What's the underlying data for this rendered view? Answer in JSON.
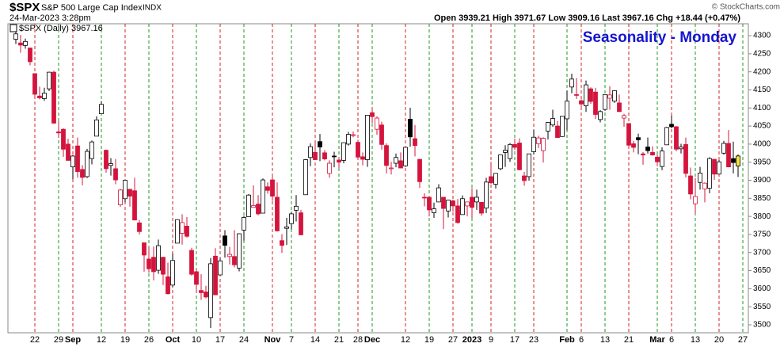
{
  "header": {
    "symbol": "$SPX",
    "name": "S&P 500 Large Cap Index",
    "exchange": "INDX",
    "date": "24-Mar-2023 3:28pm",
    "quote": "Open 3939.21  High 3971.67  Low 3909.16  Last 3967.16  Chg +18.44 (+0.47%)",
    "credit": "© StockCharts.com",
    "legend": "$SPX (Daily) 3967.16"
  },
  "chart_data": {
    "type": "candlestick",
    "annotation": "Seasonality - Monday",
    "categories": [
      null,
      null,
      null,
      null,
      "22",
      null,
      null,
      null,
      null,
      "29",
      null,
      null,
      "Sep",
      null,
      null,
      null,
      null,
      null,
      "12",
      null,
      null,
      null,
      null,
      "19",
      null,
      null,
      null,
      null,
      "26",
      null,
      null,
      null,
      null,
      "Oct",
      null,
      null,
      null,
      null,
      "10",
      null,
      null,
      null,
      null,
      "17",
      null,
      null,
      null,
      null,
      "24",
      null,
      null,
      null,
      null,
      null,
      "Nov",
      null,
      null,
      null,
      "7",
      null,
      null,
      null,
      null,
      "14",
      null,
      null,
      null,
      null,
      "21",
      null,
      null,
      null,
      "28",
      null,
      null,
      "Dec",
      null,
      null,
      null,
      null,
      null,
      null,
      "12",
      null,
      null,
      null,
      null,
      "19",
      null,
      null,
      null,
      null,
      "27",
      null,
      null,
      null,
      "2023",
      null,
      null,
      null,
      "9",
      null,
      null,
      null,
      null,
      "17",
      null,
      null,
      null,
      "23",
      null,
      null,
      null,
      null,
      null,
      null,
      "Feb",
      null,
      null,
      "6",
      null,
      null,
      null,
      null,
      "13",
      null,
      null,
      null,
      null,
      "21",
      null,
      null,
      null,
      null,
      null,
      "Mar",
      null,
      null,
      "6",
      null,
      null,
      null,
      null,
      "13",
      null,
      null,
      null,
      null,
      "20",
      null,
      null,
      null,
      null,
      "27"
    ],
    "open": [
      4290,
      4280,
      4273,
      4266,
      4195,
      4133,
      4126,
      4153,
      4199,
      4034,
      4041,
      4000,
      3937,
      3995,
      3930,
      3910,
      3960,
      4022,
      4084,
      3983,
      3941,
      3932,
      3832,
      3849,
      3875,
      3871,
      3782,
      3727,
      3682,
      3687,
      3651,
      3687,
      3633,
      3610,
      3726,
      3753,
      3773,
      3706,
      3647,
      3595,
      3591,
      3520,
      3690,
      3638,
      3746,
      3689,
      3689,
      3657,
      3762,
      3799,
      3825,
      3834,
      3809,
      3882,
      3901,
      3853,
      3733,
      3767,
      3780,
      3817,
      3810,
      3860,
      3963,
      3977,
      4007,
      3976,
      3919,
      3967,
      3956,
      3955,
      4000,
      4024,
      4005,
      3965,
      3957,
      4087,
      4041,
      4053,
      3996,
      3934,
      3947,
      3954,
      3940,
      4069,
      4015,
      3958,
      3853,
      3853,
      3810,
      3840,
      3853,
      3815,
      3843,
      3829,
      3805,
      3829,
      3853,
      3840,
      3839,
      3823,
      3910,
      3889,
      3932,
      3977,
      3960,
      3999,
      4003,
      3912,
      3910,
      3979,
      4001,
      3982,
      4036,
      4053,
      4050,
      4021,
      4070,
      4158,
      4137,
      4120,
      4106,
      4153,
      4144,
      4068,
      4096,
      4127,
      4119,
      4114,
      4072,
      4057,
      4001,
      4018,
      3973,
      3992,
      3977,
      3964,
      3938,
      3998,
      4055,
      4048,
      3987,
      3999,
      3912,
      3835,
      3894,
      3876,
      3878,
      3958,
      3917,
      3975,
      4002,
      3960,
      3939.21,
      null
    ],
    "high": [
      4325,
      4302,
      4292,
      4266,
      4195,
      4159,
      4156,
      4200,
      4203,
      4063,
      4044,
      4015,
      3970,
      4018,
      3942,
      3987,
      4010,
      4077,
      4119,
      3985,
      3961,
      3959,
      3876,
      3900,
      3876,
      3907,
      3790,
      3727,
      3715,
      3717,
      3736,
      3687,
      3672,
      3698,
      3792,
      3806,
      3798,
      3713,
      3653,
      3640,
      3608,
      3685,
      3712,
      3684,
      3762,
      3716,
      3762,
      3753,
      3801,
      3862,
      3886,
      3859,
      3905,
      3894,
      3911,
      3894,
      3751,
      3796,
      3813,
      3859,
      3818,
      3959,
      4002,
      4009,
      4028,
      3984,
      3955,
      3979,
      3963,
      4004,
      4034,
      4035,
      4012,
      3977,
      4080,
      4101,
      4077,
      4062,
      4002,
      3951,
      3974,
      3977,
      3990,
      4101,
      4053,
      3958,
      3864,
      3855,
      3838,
      3889,
      3853,
      3846,
      3846,
      3848,
      3858,
      3840,
      3878,
      3874,
      3839,
      3907,
      3951,
      3919,
      3970,
      3997,
      4003,
      4015,
      4016,
      3923,
      3973,
      4039,
      4023,
      4019,
      4061,
      4095,
      4064,
      4077,
      4148,
      4195,
      4183,
      4124,
      4176,
      4157,
      4156,
      4094,
      4138,
      4160,
      4149,
      4137,
      4084,
      4057,
      4009,
      4029,
      3978,
      4018,
      3994,
      3971,
      3991,
      4048,
      4079,
      4050,
      4001,
      4018,
      3935,
      3906,
      3937,
      3894,
      3964,
      3959,
      3956,
      4009,
      4039,
      4007,
      3971.67,
      null
    ],
    "low": [
      4277,
      4253,
      4264,
      4218,
      4129,
      4124,
      4120,
      4147,
      4057,
      4017,
      3965,
      3954,
      3903,
      3907,
      3886,
      3906,
      3944,
      4022,
      4084,
      3921,
      3913,
      3889,
      3827,
      3839,
      3827,
      3789,
      3750,
      3647,
      3644,
      3623,
      3641,
      3610,
      3584,
      3604,
      3726,
      3722,
      3741,
      3636,
      3588,
      3569,
      3573,
      3491,
      3582,
      3638,
      3686,
      3667,
      3659,
      3648,
      3733,
      3799,
      3824,
      3803,
      3809,
      3863,
      3843,
      3758,
      3699,
      3721,
      3764,
      3786,
      3748,
      3860,
      3939,
      3956,
      3953,
      3955,
      3907,
      3936,
      3933,
      3947,
      3996,
      4019,
      3956,
      3941,
      3937,
      4058,
      4026,
      3985,
      3919,
      3916,
      3936,
      3933,
      3937,
      3993,
      3966,
      3879,
      3828,
      3800,
      3796,
      3840,
      3765,
      3797,
      3813,
      3780,
      3805,
      3800,
      3795,
      3818,
      3802,
      3809,
      3890,
      3877,
      3928,
      3937,
      3951,
      3984,
      3928,
      3885,
      3899,
      3971,
      3989,
      3949,
      4013,
      4048,
      4018,
      4020,
      4038,
      4141,
      4125,
      4094,
      4089,
      4111,
      4070,
      4060,
      4092,
      4095,
      4114,
      4089,
      4048,
      3995,
      3977,
      3972,
      3943,
      3974,
      3968,
      3939,
      3928,
      3998,
      4044,
      3980,
      3974,
      3908,
      3847,
      3809,
      3874,
      3839,
      3864,
      3901,
      3917,
      3971,
      3936,
      3919,
      3909.16,
      null
    ],
    "close": [
      4305,
      4274,
      4284,
      4228,
      4138,
      4128,
      4141,
      4199,
      4058,
      4031,
      3986,
      3955,
      3967,
      3924,
      3908,
      3980,
      4006,
      4067,
      4110,
      3932,
      3946,
      3901,
      3873,
      3900,
      3856,
      3790,
      3758,
      3693,
      3655,
      3647,
      3719,
      3640,
      3586,
      3678,
      3791,
      3783,
      3745,
      3640,
      3612,
      3589,
      3577,
      3669,
      3583,
      3677,
      3720,
      3695,
      3666,
      3752,
      3797,
      3859,
      3830,
      3807,
      3901,
      3872,
      3856,
      3760,
      3720,
      3771,
      3807,
      3828,
      3749,
      3957,
      3993,
      3957,
      3992,
      3959,
      3947,
      3965,
      3950,
      4004,
      4027,
      4026,
      3964,
      3958,
      4080,
      4076,
      4072,
      3999,
      3941,
      3934,
      3963,
      3934,
      3991,
      4020,
      3996,
      3896,
      3852,
      3818,
      3821,
      3879,
      3822,
      3845,
      3829,
      3783,
      3849,
      3840,
      3825,
      3853,
      3809,
      3895,
      3893,
      3919,
      3970,
      3983,
      3999,
      3991,
      3929,
      3899,
      3973,
      4019,
      4017,
      4016,
      4060,
      4071,
      4018,
      4077,
      4119,
      4180,
      4136,
      4111,
      4164,
      4118,
      4082,
      4090,
      4137,
      4136,
      4148,
      4090,
      4079,
      3997,
      3991,
      4012,
      3970,
      3982,
      3970,
      3951,
      3981,
      4046,
      4048,
      3986,
      3992,
      3919,
      3862,
      3855,
      3920,
      3892,
      3960,
      3917,
      3951,
      4002,
      3937,
      3949,
      3967.16,
      null
    ],
    "up_color": "#000000",
    "down_color": "#d4143c",
    "current_color": "#f2e34a",
    "monday_color": "#d42020",
    "week_color": "#1e9a1e",
    "ylim": [
      3478,
      4333
    ],
    "yticks": [
      3500,
      3550,
      3600,
      3650,
      3700,
      3750,
      3800,
      3850,
      3900,
      3950,
      4000,
      4050,
      4100,
      4150,
      4200,
      4250,
      4300
    ]
  }
}
